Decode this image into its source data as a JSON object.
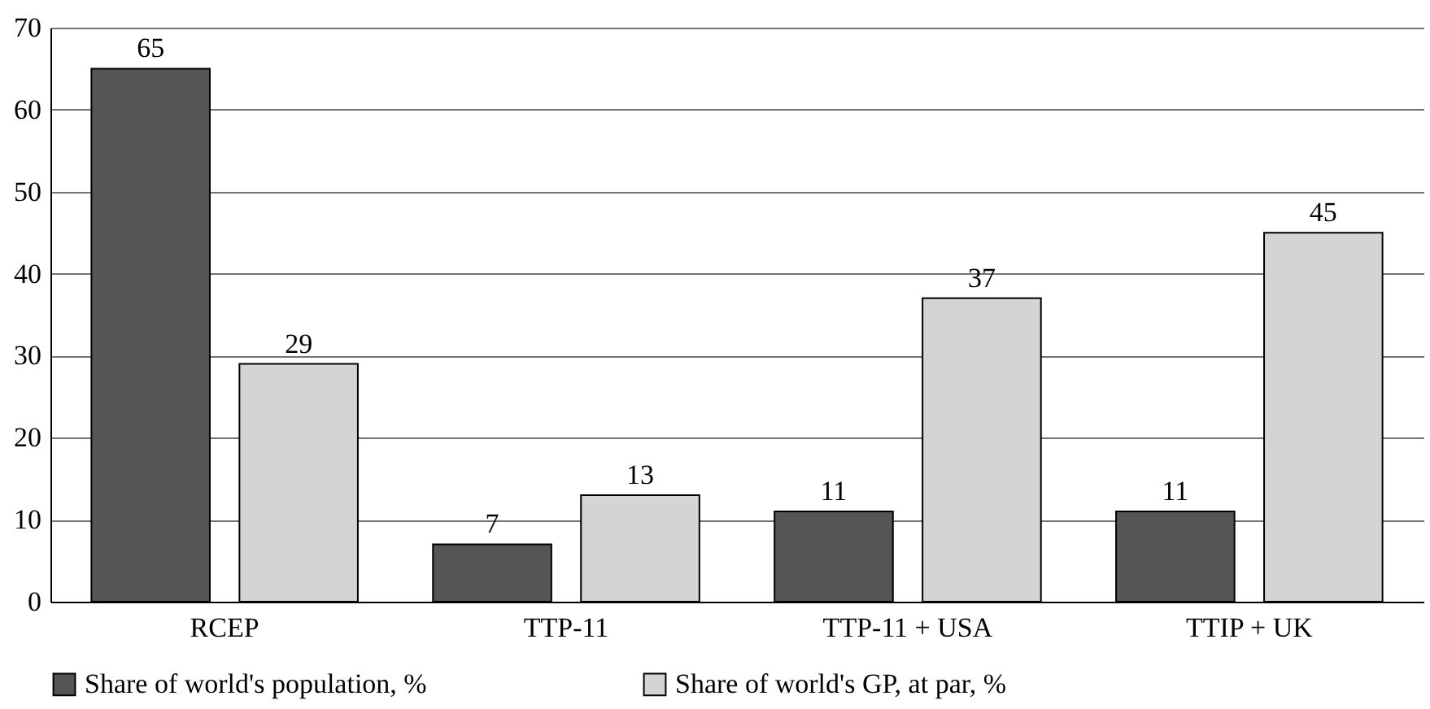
{
  "chart_data": {
    "type": "bar",
    "categories": [
      "RCEP",
      "TTP-11",
      "TTP-11 + USA",
      "TTIP + UK"
    ],
    "series": [
      {
        "name": "Share of world's population, %",
        "color": "#555555",
        "values": [
          65,
          7,
          11,
          11
        ]
      },
      {
        "name": "Share of world's GP, at par, %",
        "color": "#d4d4d4",
        "values": [
          29,
          13,
          37,
          45
        ]
      }
    ],
    "ylim": [
      0,
      70
    ],
    "yticks": [
      0,
      10,
      20,
      30,
      40,
      50,
      60,
      70
    ],
    "grid": "y",
    "legend": "bottom",
    "data_labels": true
  }
}
